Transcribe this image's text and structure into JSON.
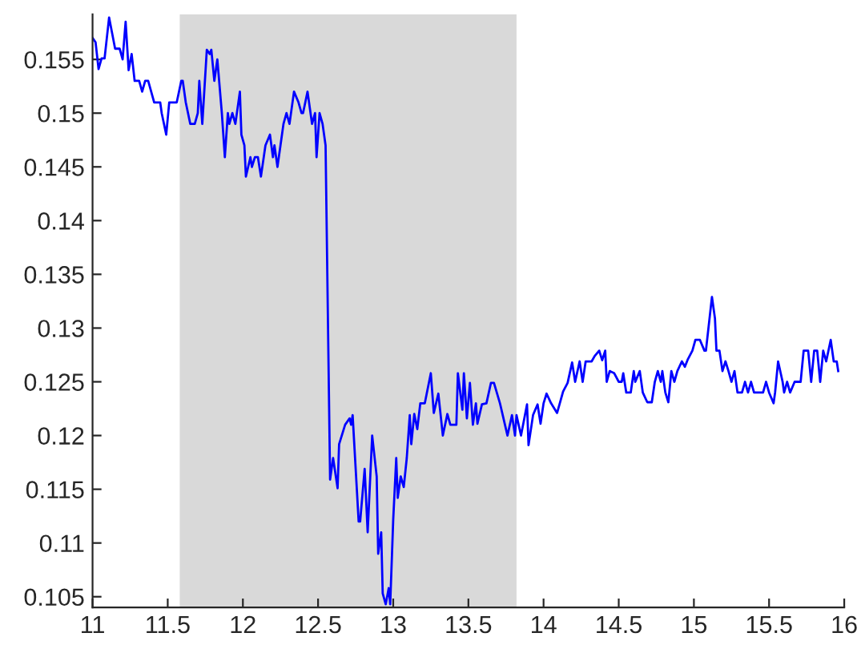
{
  "chart_data": {
    "type": "line",
    "xlim": [
      11,
      16
    ],
    "ylim": [
      0.104,
      0.1592
    ],
    "xticks": [
      11,
      11.5,
      12,
      12.5,
      13,
      13.5,
      14,
      14.5,
      15,
      15.5,
      16
    ],
    "yticks": [
      0.105,
      0.11,
      0.115,
      0.12,
      0.125,
      0.13,
      0.135,
      0.14,
      0.145,
      0.15,
      0.155
    ],
    "grid": false,
    "marker": "none",
    "line_style": "solid",
    "bands": [
      {
        "axis": "x",
        "from": 11.58,
        "to": 13.82,
        "color": "#d9d9d9"
      }
    ],
    "series": [
      {
        "color": "#0000ff",
        "x": [
          11.0,
          11.02,
          11.04,
          11.06,
          11.08,
          11.11,
          11.15,
          11.18,
          11.2,
          11.22,
          11.24,
          11.26,
          11.28,
          11.31,
          11.33,
          11.35,
          11.37,
          11.39,
          11.41,
          11.45,
          11.46,
          11.49,
          11.51,
          11.56,
          11.59,
          11.6,
          11.62,
          11.65,
          11.68,
          11.7,
          11.71,
          11.73,
          11.76,
          11.78,
          11.79,
          11.81,
          11.83,
          11.86,
          11.88,
          11.9,
          11.91,
          11.93,
          11.95,
          11.98,
          11.99,
          12.01,
          12.02,
          12.05,
          12.06,
          12.08,
          12.1,
          12.12,
          12.15,
          12.18,
          12.2,
          12.21,
          12.23,
          12.25,
          12.27,
          12.29,
          12.31,
          12.34,
          12.37,
          12.39,
          12.4,
          12.43,
          12.45,
          12.46,
          12.48,
          12.49,
          12.51,
          12.53,
          12.55,
          12.58,
          12.6,
          12.63,
          12.64,
          12.68,
          12.71,
          12.72,
          12.73,
          12.77,
          12.78,
          12.81,
          12.83,
          12.86,
          12.89,
          12.9,
          12.92,
          12.93,
          12.95,
          12.97,
          12.98,
          13.0,
          13.02,
          13.03,
          13.05,
          13.07,
          13.09,
          13.11,
          13.12,
          13.14,
          13.16,
          13.18,
          13.21,
          13.25,
          13.27,
          13.3,
          13.33,
          13.36,
          13.38,
          13.42,
          13.43,
          13.46,
          13.47,
          13.49,
          13.51,
          13.53,
          13.55,
          13.56,
          13.59,
          13.62,
          13.65,
          13.67,
          13.71,
          13.76,
          13.79,
          13.81,
          13.82,
          13.85,
          13.89,
          13.9,
          13.93,
          13.96,
          13.98,
          14.0,
          14.02,
          14.05,
          14.09,
          14.13,
          14.16,
          14.19,
          14.21,
          14.24,
          14.26,
          14.28,
          14.32,
          14.34,
          14.37,
          14.39,
          14.41,
          14.42,
          14.44,
          14.47,
          14.5,
          14.52,
          14.53,
          14.55,
          14.58,
          14.6,
          14.61,
          14.64,
          14.66,
          14.69,
          14.72,
          14.74,
          14.76,
          14.78,
          14.79,
          14.81,
          14.83,
          14.85,
          14.87,
          14.89,
          14.92,
          14.94,
          14.96,
          14.99,
          15.01,
          15.04,
          15.07,
          15.08,
          15.12,
          15.14,
          15.15,
          15.17,
          15.19,
          15.21,
          15.23,
          15.25,
          15.27,
          15.29,
          15.32,
          15.34,
          15.36,
          15.38,
          15.4,
          15.43,
          15.46,
          15.48,
          15.5,
          15.53,
          15.54,
          15.56,
          15.59,
          15.6,
          15.62,
          15.64,
          15.67,
          15.71,
          15.73,
          15.76,
          15.78,
          15.8,
          15.82,
          15.84,
          15.86,
          15.88,
          15.91,
          15.93,
          15.95,
          15.96
        ],
        "values": [
          0.157,
          0.1566,
          0.1541,
          0.1551,
          0.1551,
          0.1589,
          0.156,
          0.156,
          0.155,
          0.1585,
          0.154,
          0.1555,
          0.153,
          0.153,
          0.152,
          0.153,
          0.153,
          0.152,
          0.151,
          0.151,
          0.15,
          0.148,
          0.151,
          0.151,
          0.153,
          0.153,
          0.151,
          0.149,
          0.149,
          0.15,
          0.153,
          0.149,
          0.1559,
          0.1555,
          0.1559,
          0.153,
          0.155,
          0.15,
          0.1459,
          0.15,
          0.149,
          0.15,
          0.149,
          0.152,
          0.148,
          0.147,
          0.1441,
          0.1459,
          0.145,
          0.1459,
          0.1459,
          0.1441,
          0.147,
          0.148,
          0.1459,
          0.147,
          0.145,
          0.147,
          0.149,
          0.15,
          0.149,
          0.152,
          0.151,
          0.15,
          0.15,
          0.152,
          0.15,
          0.149,
          0.15,
          0.1459,
          0.15,
          0.149,
          0.147,
          0.1159,
          0.1179,
          0.1151,
          0.1192,
          0.121,
          0.1216,
          0.121,
          0.1219,
          0.112,
          0.112,
          0.1169,
          0.111,
          0.12,
          0.1162,
          0.109,
          0.111,
          0.1053,
          0.1043,
          0.1058,
          0.1043,
          0.1122,
          0.1179,
          0.1142,
          0.1162,
          0.1152,
          0.1179,
          0.1219,
          0.1192,
          0.122,
          0.1206,
          0.123,
          0.123,
          0.1258,
          0.1221,
          0.1239,
          0.12,
          0.122,
          0.121,
          0.121,
          0.1258,
          0.1224,
          0.1258,
          0.1216,
          0.1249,
          0.121,
          0.123,
          0.1211,
          0.1229,
          0.123,
          0.1249,
          0.1249,
          0.123,
          0.12,
          0.1219,
          0.12,
          0.1219,
          0.12,
          0.1229,
          0.1191,
          0.1219,
          0.1229,
          0.1211,
          0.123,
          0.1239,
          0.123,
          0.1221,
          0.1241,
          0.1249,
          0.1268,
          0.125,
          0.1269,
          0.125,
          0.1269,
          0.1269,
          0.1274,
          0.1279,
          0.127,
          0.1279,
          0.125,
          0.126,
          0.1258,
          0.125,
          0.125,
          0.1258,
          0.124,
          0.124,
          0.126,
          0.125,
          0.126,
          0.124,
          0.1231,
          0.1231,
          0.125,
          0.126,
          0.125,
          0.126,
          0.124,
          0.1231,
          0.126,
          0.125,
          0.126,
          0.1269,
          0.1264,
          0.1271,
          0.1279,
          0.1289,
          0.1289,
          0.1279,
          0.1279,
          0.1329,
          0.1309,
          0.1279,
          0.1279,
          0.126,
          0.1269,
          0.126,
          0.125,
          0.126,
          0.124,
          0.124,
          0.125,
          0.124,
          0.125,
          0.124,
          0.124,
          0.124,
          0.125,
          0.124,
          0.123,
          0.124,
          0.1269,
          0.125,
          0.124,
          0.125,
          0.124,
          0.125,
          0.125,
          0.1279,
          0.1279,
          0.125,
          0.1279,
          0.1279,
          0.125,
          0.1279,
          0.1269,
          0.1289,
          0.1269,
          0.1269,
          0.126
        ]
      }
    ]
  }
}
